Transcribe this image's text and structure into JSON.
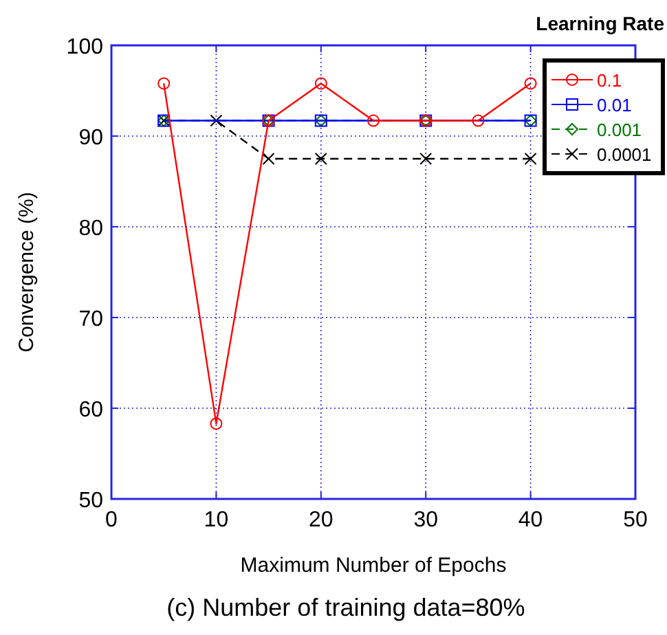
{
  "chart_data": {
    "type": "line",
    "legend_title": "Learning Rate",
    "xlabel": "Maximum Number of Epochs",
    "ylabel": "Convergence (%)",
    "annotations": [
      "(c) Number of training data=80%"
    ],
    "xlim": [
      0,
      50
    ],
    "xticks": [
      0,
      10,
      20,
      30,
      40,
      50
    ],
    "ylim": [
      50,
      100
    ],
    "yticks": [
      50,
      60,
      70,
      80,
      90,
      100
    ],
    "grid": true,
    "legend": "top right",
    "series": [
      {
        "name": "0.1",
        "color": "#ff0000",
        "marker": "circle",
        "line_style": "solid",
        "x": [
          5,
          10,
          15,
          20,
          25,
          30,
          35,
          40
        ],
        "values": [
          95.8,
          58.3,
          91.7,
          95.8,
          91.7,
          91.7,
          91.7,
          95.8
        ]
      },
      {
        "name": "0.01",
        "color": "#0000ff",
        "marker": "square",
        "line_style": "solid",
        "x": [
          5,
          15,
          20,
          30,
          40
        ],
        "values": [
          91.7,
          91.7,
          91.7,
          91.7,
          91.7
        ]
      },
      {
        "name": "0.001",
        "color": "#007700",
        "marker": "diamond",
        "line_style": "dashed",
        "x": [
          5,
          15,
          20,
          30,
          40
        ],
        "values": [
          91.7,
          91.7,
          91.7,
          91.7,
          91.7
        ]
      },
      {
        "name": "0.0001",
        "color": "#000000",
        "marker": "cross",
        "line_style": "dashed",
        "x": [
          5,
          10,
          15,
          20,
          30,
          40
        ],
        "values": [
          91.7,
          91.7,
          87.5,
          87.5,
          87.5,
          87.5
        ]
      }
    ]
  }
}
